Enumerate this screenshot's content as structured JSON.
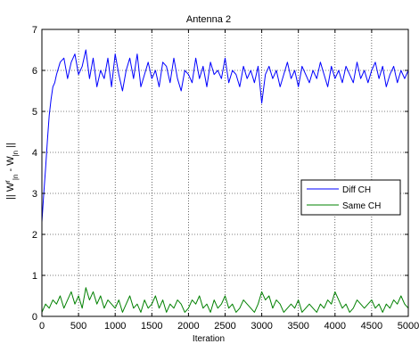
{
  "chart_data": {
    "type": "line",
    "title": "Antenna 2",
    "xlabel": "Iteration",
    "ylabel_parts": [
      "|| W",
      "r",
      "|n",
      " - W",
      "|n",
      " ||"
    ],
    "xlim": [
      0,
      5000
    ],
    "ylim": [
      0,
      7
    ],
    "xticks": [
      0,
      500,
      1000,
      1500,
      2000,
      2500,
      3000,
      3500,
      4000,
      4500,
      5000
    ],
    "yticks": [
      0,
      1,
      2,
      3,
      4,
      5,
      6,
      7
    ],
    "grid": true,
    "legend_position": "right",
    "series": [
      {
        "name": "Diff CH",
        "color": "#0000ff",
        "x": [
          0,
          25,
          50,
          75,
          100,
          125,
          150,
          175,
          200,
          250,
          300,
          350,
          400,
          450,
          500,
          550,
          600,
          650,
          700,
          750,
          800,
          850,
          900,
          950,
          1000,
          1050,
          1100,
          1150,
          1200,
          1250,
          1300,
          1350,
          1400,
          1450,
          1500,
          1550,
          1600,
          1650,
          1700,
          1750,
          1800,
          1850,
          1900,
          1950,
          2000,
          2050,
          2100,
          2150,
          2200,
          2250,
          2300,
          2350,
          2400,
          2450,
          2500,
          2550,
          2600,
          2650,
          2700,
          2750,
          2800,
          2850,
          2900,
          2950,
          3000,
          3050,
          3100,
          3150,
          3200,
          3250,
          3300,
          3350,
          3400,
          3450,
          3500,
          3550,
          3600,
          3650,
          3700,
          3750,
          3800,
          3850,
          3900,
          3950,
          4000,
          4050,
          4100,
          4150,
          4200,
          4250,
          4300,
          4350,
          4400,
          4450,
          4500,
          4550,
          4600,
          4650,
          4700,
          4750,
          4800,
          4850,
          4900,
          4950,
          5000
        ],
        "y": [
          2.3,
          3.0,
          3.6,
          4.3,
          4.9,
          5.3,
          5.6,
          5.7,
          5.9,
          6.2,
          6.3,
          5.8,
          6.2,
          6.4,
          5.9,
          6.1,
          6.5,
          5.8,
          6.3,
          5.6,
          6.0,
          5.8,
          6.3,
          5.6,
          6.4,
          5.9,
          5.5,
          6.0,
          6.3,
          5.8,
          6.4,
          5.6,
          5.9,
          6.2,
          5.8,
          6.0,
          5.6,
          6.2,
          6.1,
          5.7,
          6.3,
          5.8,
          5.5,
          6.0,
          5.9,
          5.7,
          6.3,
          5.8,
          6.1,
          5.6,
          6.2,
          5.9,
          6.0,
          5.8,
          6.3,
          5.7,
          6.0,
          5.9,
          5.6,
          6.1,
          5.8,
          6.0,
          5.7,
          6.1,
          5.2,
          5.9,
          6.1,
          5.8,
          6.0,
          5.6,
          5.9,
          6.2,
          5.8,
          6.0,
          5.6,
          6.1,
          5.9,
          5.7,
          6.0,
          5.8,
          6.2,
          5.9,
          5.6,
          6.1,
          5.8,
          6.0,
          5.7,
          6.1,
          5.9,
          5.7,
          6.2,
          5.8,
          6.0,
          5.7,
          6.0,
          6.2,
          5.8,
          6.1,
          5.6,
          5.9,
          6.1,
          5.7,
          6.0,
          5.8,
          6.0
        ]
      },
      {
        "name": "Same CH",
        "color": "#008000",
        "x": [
          0,
          50,
          100,
          150,
          200,
          250,
          300,
          350,
          400,
          450,
          500,
          550,
          600,
          650,
          700,
          750,
          800,
          850,
          900,
          950,
          1000,
          1050,
          1100,
          1150,
          1200,
          1250,
          1300,
          1350,
          1400,
          1450,
          1500,
          1550,
          1600,
          1650,
          1700,
          1750,
          1800,
          1850,
          1900,
          1950,
          2000,
          2050,
          2100,
          2150,
          2200,
          2250,
          2300,
          2350,
          2400,
          2450,
          2500,
          2550,
          2600,
          2650,
          2700,
          2750,
          2800,
          2850,
          2900,
          2950,
          3000,
          3050,
          3100,
          3150,
          3200,
          3250,
          3300,
          3350,
          3400,
          3450,
          3500,
          3550,
          3600,
          3650,
          3700,
          3750,
          3800,
          3850,
          3900,
          3950,
          4000,
          4050,
          4100,
          4150,
          4200,
          4250,
          4300,
          4350,
          4400,
          4450,
          4500,
          4550,
          4600,
          4650,
          4700,
          4750,
          4800,
          4850,
          4900,
          4950,
          5000
        ],
        "y": [
          0.1,
          0.3,
          0.2,
          0.4,
          0.3,
          0.5,
          0.2,
          0.4,
          0.6,
          0.3,
          0.5,
          0.2,
          0.7,
          0.4,
          0.6,
          0.3,
          0.5,
          0.2,
          0.4,
          0.3,
          0.2,
          0.4,
          0.1,
          0.3,
          0.5,
          0.2,
          0.3,
          0.1,
          0.4,
          0.2,
          0.3,
          0.5,
          0.2,
          0.4,
          0.1,
          0.3,
          0.2,
          0.4,
          0.3,
          0.1,
          0.2,
          0.4,
          0.3,
          0.5,
          0.2,
          0.3,
          0.1,
          0.4,
          0.2,
          0.3,
          0.5,
          0.2,
          0.3,
          0.1,
          0.2,
          0.4,
          0.3,
          0.2,
          0.1,
          0.3,
          0.6,
          0.4,
          0.5,
          0.2,
          0.4,
          0.3,
          0.1,
          0.2,
          0.3,
          0.2,
          0.4,
          0.1,
          0.2,
          0.3,
          0.2,
          0.1,
          0.3,
          0.2,
          0.4,
          0.3,
          0.6,
          0.4,
          0.2,
          0.3,
          0.1,
          0.2,
          0.4,
          0.3,
          0.2,
          0.3,
          0.4,
          0.2,
          0.3,
          0.1,
          0.3,
          0.2,
          0.4,
          0.3,
          0.5,
          0.3,
          0.2
        ]
      }
    ]
  }
}
